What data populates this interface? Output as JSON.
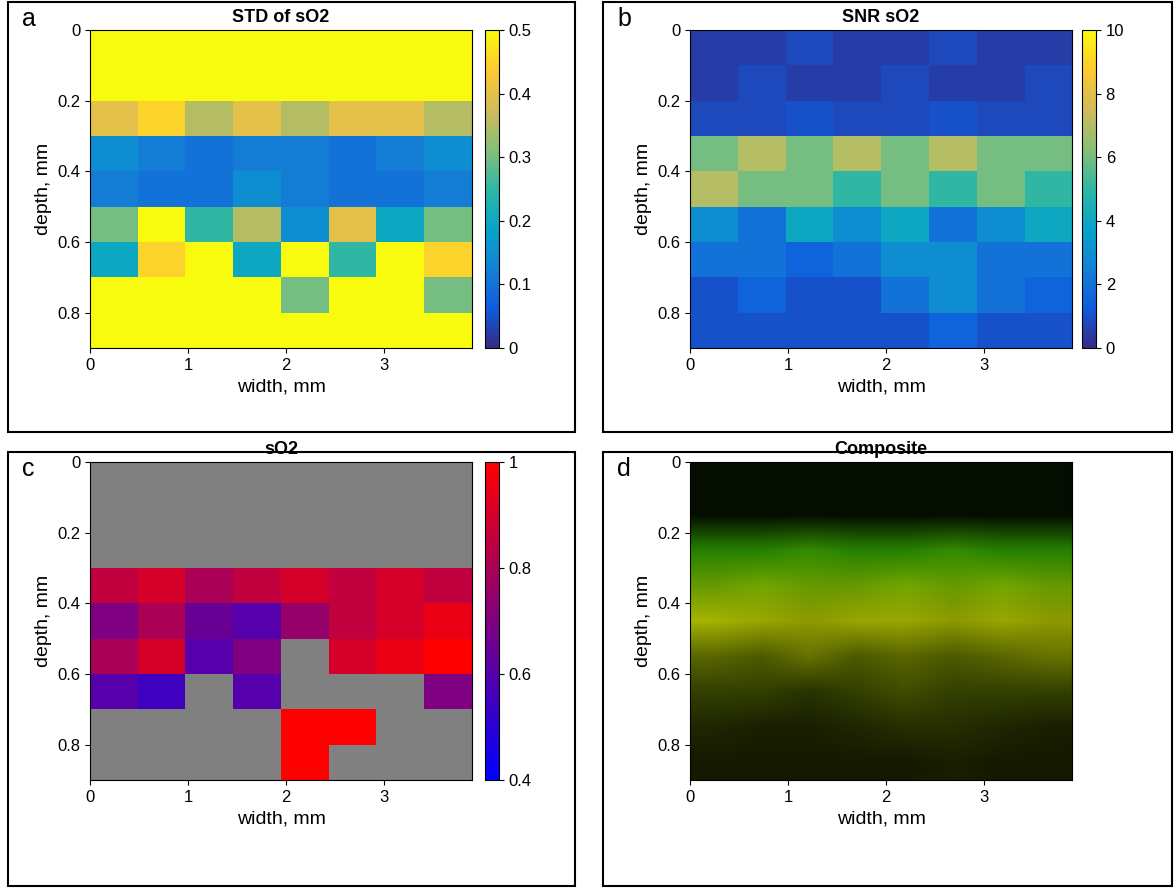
{
  "chart_data": [
    {
      "type": "heatmap",
      "label": "a",
      "title": "STD of sO2",
      "xlabel": "width, mm",
      "ylabel": "depth, mm",
      "xlim": [
        0,
        3.9
      ],
      "ylim": [
        0.9,
        0
      ],
      "xticks": [
        0,
        1,
        2,
        3
      ],
      "yticks": [
        0,
        0.2,
        0.4,
        0.6,
        0.8
      ],
      "color": "parula",
      "clim": [
        0,
        0.5
      ],
      "colorbar_ticks": [
        0,
        0.1,
        0.2,
        0.3,
        0.4,
        0.5
      ],
      "cells": [
        [
          0.5,
          0.5,
          0.5,
          0.5,
          0.5,
          0.5,
          0.5,
          0.5
        ],
        [
          0.5,
          0.5,
          0.5,
          0.5,
          0.5,
          0.5,
          0.5,
          0.5
        ],
        [
          0.4,
          0.45,
          0.35,
          0.4,
          0.35,
          0.4,
          0.4,
          0.35
        ],
        [
          0.15,
          0.12,
          0.1,
          0.12,
          0.12,
          0.1,
          0.12,
          0.15
        ],
        [
          0.12,
          0.1,
          0.1,
          0.15,
          0.12,
          0.1,
          0.1,
          0.12
        ],
        [
          0.3,
          0.5,
          0.25,
          0.35,
          0.15,
          0.4,
          0.2,
          0.3
        ],
        [
          0.2,
          0.45,
          0.5,
          0.2,
          0.5,
          0.25,
          0.5,
          0.45
        ],
        [
          0.5,
          0.5,
          0.5,
          0.5,
          0.3,
          0.5,
          0.5,
          0.3
        ],
        [
          0.5,
          0.5,
          0.5,
          0.5,
          0.5,
          0.5,
          0.5,
          0.5
        ]
      ]
    },
    {
      "type": "heatmap",
      "label": "b",
      "title": "SNR sO2",
      "xlabel": "width, mm",
      "ylabel": "depth, mm",
      "xlim": [
        0,
        3.9
      ],
      "ylim": [
        0.9,
        0
      ],
      "xticks": [
        0,
        1,
        2,
        3
      ],
      "yticks": [
        0,
        0.2,
        0.4,
        0.6,
        0.8
      ],
      "color": "parula",
      "clim": [
        0,
        10
      ],
      "colorbar_ticks": [
        0,
        2,
        4,
        6,
        8,
        10
      ],
      "cells": [
        [
          0.5,
          0.5,
          0.8,
          0.5,
          0.5,
          0.8,
          0.5,
          0.5
        ],
        [
          0.5,
          0.8,
          0.5,
          0.5,
          0.8,
          0.5,
          0.5,
          0.8
        ],
        [
          0.8,
          0.8,
          1,
          0.8,
          0.8,
          1,
          0.8,
          0.8
        ],
        [
          6,
          7,
          6,
          7,
          6,
          7,
          6,
          6
        ],
        [
          7,
          6,
          6,
          5,
          6,
          5,
          6,
          5
        ],
        [
          3,
          2,
          4,
          3,
          4,
          2,
          3,
          4
        ],
        [
          2,
          2,
          1.5,
          2,
          3,
          3,
          2,
          2
        ],
        [
          1,
          1.5,
          1,
          1,
          2,
          3,
          2,
          1.5
        ],
        [
          1,
          1,
          1,
          1,
          1,
          1.5,
          1,
          1
        ]
      ]
    },
    {
      "type": "heatmap",
      "label": "c",
      "title": "sO2",
      "xlabel": "width, mm",
      "ylabel": "depth, mm",
      "xlim": [
        0,
        3.9
      ],
      "ylim": [
        0.9,
        0
      ],
      "xticks": [
        0,
        1,
        2,
        3
      ],
      "yticks": [
        0,
        0.2,
        0.4,
        0.6,
        0.8
      ],
      "color": "blue-red",
      "clim": [
        0.4,
        1
      ],
      "colorbar_ticks": [
        0.4,
        0.6,
        0.8,
        1
      ],
      "cells": [
        [
          null,
          null,
          null,
          null,
          null,
          null,
          null,
          null
        ],
        [
          null,
          null,
          null,
          null,
          null,
          null,
          null,
          null
        ],
        [
          null,
          null,
          null,
          null,
          null,
          null,
          null,
          null
        ],
        [
          0.85,
          0.9,
          0.8,
          0.85,
          0.9,
          0.85,
          0.9,
          0.85
        ],
        [
          0.7,
          0.8,
          0.65,
          0.6,
          0.75,
          0.85,
          0.9,
          0.95
        ],
        [
          0.8,
          0.9,
          0.6,
          0.7,
          null,
          0.9,
          0.95,
          1
        ],
        [
          0.6,
          0.55,
          null,
          0.6,
          null,
          null,
          null,
          0.7
        ],
        [
          null,
          null,
          null,
          null,
          1,
          1,
          null,
          null
        ],
        [
          null,
          null,
          null,
          null,
          1,
          null,
          null,
          null
        ]
      ]
    },
    {
      "type": "rgb",
      "label": "d",
      "title": "Composite",
      "xlabel": "width, mm",
      "ylabel": "depth, mm",
      "xlim": [
        0,
        3.9
      ],
      "ylim": [
        0.9,
        0
      ],
      "xticks": [
        0,
        1,
        2,
        3
      ],
      "yticks": [
        0,
        0.2,
        0.4,
        0.6,
        0.8
      ],
      "red_cells": [
        [
          0.02,
          0.02,
          0.02,
          0.02,
          0.02,
          0.02,
          0.02,
          0.02
        ],
        [
          0.02,
          0.02,
          0.02,
          0.02,
          0.02,
          0.02,
          0.02,
          0.02
        ],
        [
          0.15,
          0.15,
          0.2,
          0.15,
          0.15,
          0.2,
          0.15,
          0.15
        ],
        [
          0.4,
          0.45,
          0.4,
          0.4,
          0.45,
          0.4,
          0.45,
          0.4
        ],
        [
          0.65,
          0.6,
          0.55,
          0.6,
          0.6,
          0.55,
          0.6,
          0.55
        ],
        [
          0.35,
          0.3,
          0.4,
          0.3,
          0.35,
          0.3,
          0.35,
          0.4
        ],
        [
          0.2,
          0.2,
          0.15,
          0.2,
          0.25,
          0.2,
          0.2,
          0.2
        ],
        [
          0.12,
          0.1,
          0.1,
          0.12,
          0.15,
          0.15,
          0.12,
          0.1
        ],
        [
          0.08,
          0.08,
          0.08,
          0.08,
          0.08,
          0.1,
          0.08,
          0.08
        ]
      ],
      "green_cells": [
        [
          0.05,
          0.05,
          0.05,
          0.05,
          0.05,
          0.05,
          0.05,
          0.05
        ],
        [
          0.05,
          0.05,
          0.05,
          0.05,
          0.05,
          0.05,
          0.05,
          0.05
        ],
        [
          0.5,
          0.5,
          0.55,
          0.5,
          0.5,
          0.55,
          0.5,
          0.5
        ],
        [
          0.6,
          0.65,
          0.6,
          0.6,
          0.65,
          0.6,
          0.65,
          0.6
        ],
        [
          0.7,
          0.65,
          0.6,
          0.65,
          0.65,
          0.6,
          0.65,
          0.6
        ],
        [
          0.4,
          0.35,
          0.45,
          0.35,
          0.4,
          0.35,
          0.4,
          0.45
        ],
        [
          0.25,
          0.25,
          0.2,
          0.25,
          0.3,
          0.25,
          0.25,
          0.25
        ],
        [
          0.15,
          0.12,
          0.12,
          0.15,
          0.18,
          0.18,
          0.15,
          0.12
        ],
        [
          0.1,
          0.1,
          0.1,
          0.1,
          0.1,
          0.12,
          0.1,
          0.1
        ]
      ]
    }
  ]
}
